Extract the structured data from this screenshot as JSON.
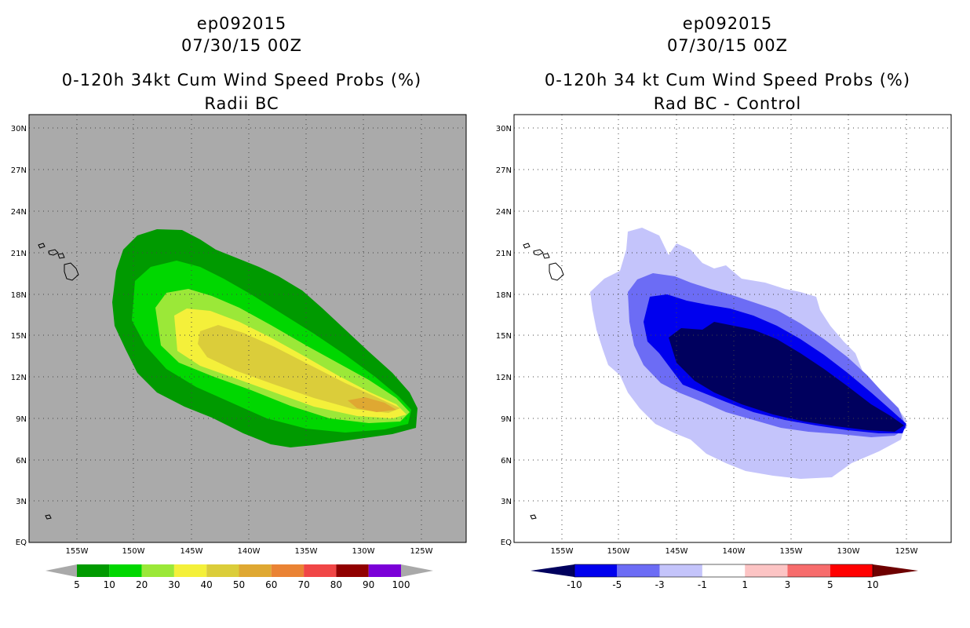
{
  "left_panel": {
    "title_lines": [
      "ep092015",
      "07/30/15 00Z",
      "0-120h 34kt Cum Wind Speed Probs (%)",
      "Radii BC"
    ],
    "lat_labels": [
      "30N",
      "27N",
      "24N",
      "21N",
      "18N",
      "15N",
      "12N",
      "9N",
      "6N",
      "3N",
      "EQ"
    ],
    "lon_labels": [
      "155W",
      "150W",
      "145W",
      "140W",
      "135W",
      "130W",
      "125W"
    ],
    "colorbar": {
      "labels": [
        "5",
        "10",
        "20",
        "30",
        "40",
        "50",
        "60",
        "70",
        "80",
        "90",
        "100"
      ],
      "colors": [
        "#009a00",
        "#00d700",
        "#9be838",
        "#f4f03a",
        "#dbcd3a",
        "#dfa832",
        "#ea8334",
        "#f04646",
        "#910000",
        "#7b00d8"
      ],
      "low_color": "#a9a9a9",
      "high_color": "#a9a9a9"
    },
    "background_color": "#aaaaaa"
  },
  "right_panel": {
    "title_lines": [
      "ep092015",
      "07/30/15 00Z",
      "0-120h 34 kt Cum Wind Speed Probs (%)",
      "Rad BC - Control"
    ],
    "lat_labels": [
      "30N",
      "27N",
      "24N",
      "21N",
      "18N",
      "15N",
      "12N",
      "9N",
      "6N",
      "3N",
      "EQ"
    ],
    "lon_labels": [
      "155W",
      "150W",
      "145W",
      "140W",
      "135W",
      "130W",
      "125W"
    ],
    "colorbar": {
      "labels": [
        "-10",
        "-5",
        "-3",
        "-1",
        "1",
        "3",
        "5",
        "10"
      ],
      "colors": [
        "#0000ee",
        "#6c6cf5",
        "#c4c4fb",
        "#ffffff",
        "#fcc4c4",
        "#f76c6c",
        "#ff0000"
      ],
      "low_color": "#00005e",
      "high_color": "#6e0000"
    },
    "background_color": "#ffffff"
  }
}
